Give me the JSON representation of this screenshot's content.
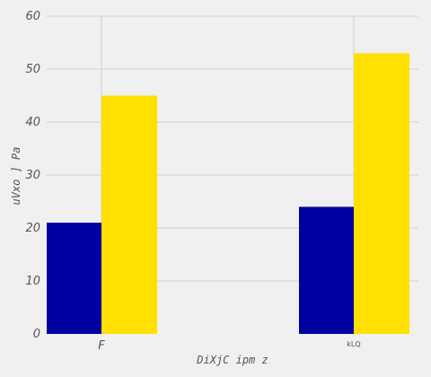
{
  "chart_data": {
    "type": "bar",
    "title": "",
    "xlabel": "DiXjC ipm  z",
    "ylabel": "uVxo ] Pa",
    "categories": [
      "F",
      "kLQ"
    ],
    "series": [
      {
        "values": [
          21,
          24
        ],
        "color": "#0000a0"
      },
      {
        "values": [
          45,
          53
        ],
        "color": "#ffe000"
      }
    ],
    "ylim": [
      0,
      60
    ],
    "yticks": [
      0,
      10,
      20,
      30,
      40,
      50,
      60
    ],
    "grid": true,
    "legend": "none",
    "background": "#f0f0f0",
    "grid_color": "#cfcfcf"
  }
}
